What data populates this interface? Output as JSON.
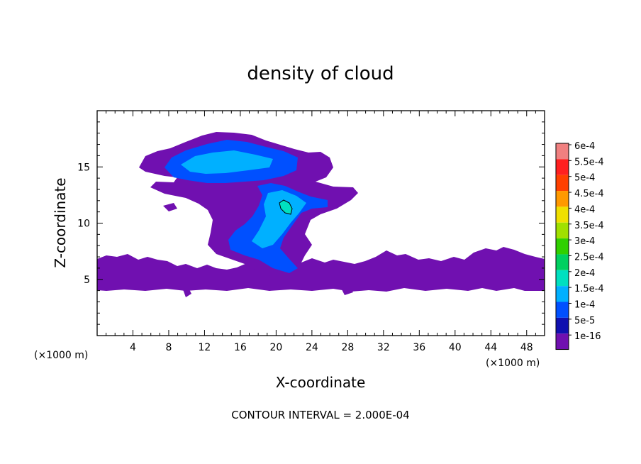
{
  "chart_data": {
    "type": "heatmap",
    "title": "density of cloud",
    "xlabel": "X-coordinate",
    "ylabel": "Z-coordinate",
    "x_unit_label": "(×1000 m)",
    "y_unit_label": "(×1000 m)",
    "xlim": [
      0,
      50
    ],
    "ylim": [
      0,
      20
    ],
    "x_ticks": [
      "4",
      "8",
      "12",
      "16",
      "20",
      "24",
      "28",
      "32",
      "36",
      "40",
      "44",
      "48"
    ],
    "y_ticks": [
      "5",
      "10",
      "15"
    ],
    "contour_note": "CONTOUR INTERVAL = 2.000E-04",
    "colorbar": {
      "labels": [
        "6e-4",
        "5.5e-4",
        "5e-4",
        "4.5e-4",
        "4e-4",
        "3.5e-4",
        "3e-4",
        "2.5e-4",
        "2e-4",
        "1.5e-4",
        "1e-4",
        "5e-5",
        "1e-16"
      ],
      "colors": [
        "#f08080",
        "#ff2020",
        "#ff4000",
        "#ff9900",
        "#f0e000",
        "#a0e000",
        "#30d000",
        "#00d060",
        "#00e0c0",
        "#00b0ff",
        "#0050ff",
        "#1010b0",
        "#7010b0"
      ]
    },
    "regions": [
      {
        "name": "lower-cloud-layer",
        "level": "1e-16",
        "x": [
          0,
          50
        ],
        "z": [
          4.2,
          7.3
        ]
      },
      {
        "name": "anvil-top",
        "level": "1e-16",
        "x": [
          4.7,
          25.5
        ],
        "z": [
          13.0,
          18.0
        ]
      },
      {
        "name": "anvil-core",
        "level": "1.5e-4",
        "x": [
          8,
          21
        ],
        "z": [
          14.5,
          17.0
        ]
      },
      {
        "name": "updraft-column",
        "level": "1e-4",
        "x": [
          14.5,
          26.5
        ],
        "z": [
          6.0,
          13.5
        ]
      },
      {
        "name": "updraft-core",
        "level": "2e-4",
        "x": [
          19.5,
          23
        ],
        "z": [
          10.5,
          12.5
        ]
      }
    ]
  }
}
